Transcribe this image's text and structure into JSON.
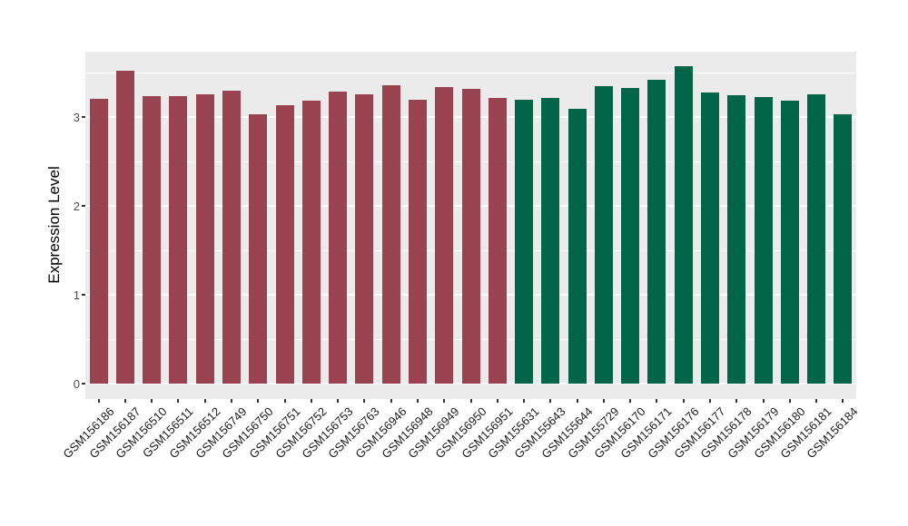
{
  "chart_data": {
    "type": "bar",
    "title": "",
    "xlabel": "",
    "ylabel": "Expression Level",
    "y_ticks": [
      0,
      1,
      2,
      3
    ],
    "y_minor_ticks": [
      0.5,
      1.5,
      2.5,
      3.5
    ],
    "ylim": [
      0,
      3.74
    ],
    "grid": "on",
    "legend": "none",
    "panel_background": "#EBEBEB",
    "gridline_color": "#FFFFFF",
    "categories": [
      "GSM156186",
      "GSM156187",
      "GSM156510",
      "GSM156511",
      "GSM156512",
      "GSM156749",
      "GSM156750",
      "GSM156751",
      "GSM156752",
      "GSM156753",
      "GSM156763",
      "GSM156946",
      "GSM156948",
      "GSM156949",
      "GSM156950",
      "GSM156951",
      "GSM155631",
      "GSM155643",
      "GSM155644",
      "GSM155729",
      "GSM156170",
      "GSM156171",
      "GSM156176",
      "GSM156177",
      "GSM156178",
      "GSM156179",
      "GSM156180",
      "GSM156181",
      "GSM156184"
    ],
    "values": [
      3.2,
      3.52,
      3.23,
      3.23,
      3.26,
      3.3,
      3.03,
      3.13,
      3.18,
      3.29,
      3.26,
      3.36,
      3.19,
      3.34,
      3.32,
      3.21,
      3.19,
      3.21,
      3.09,
      3.35,
      3.33,
      3.42,
      3.57,
      3.28,
      3.24,
      3.22,
      3.18,
      3.26,
      3.03
    ],
    "groups": [
      "group1",
      "group1",
      "group1",
      "group1",
      "group1",
      "group1",
      "group1",
      "group1",
      "group1",
      "group1",
      "group1",
      "group1",
      "group1",
      "group1",
      "group1",
      "group1",
      "group2",
      "group2",
      "group2",
      "group2",
      "group2",
      "group2",
      "group2",
      "group2",
      "group2",
      "group2",
      "group2",
      "group2",
      "group2"
    ],
    "group_colors": {
      "group1": "#9A4350",
      "group2": "#006647"
    }
  }
}
